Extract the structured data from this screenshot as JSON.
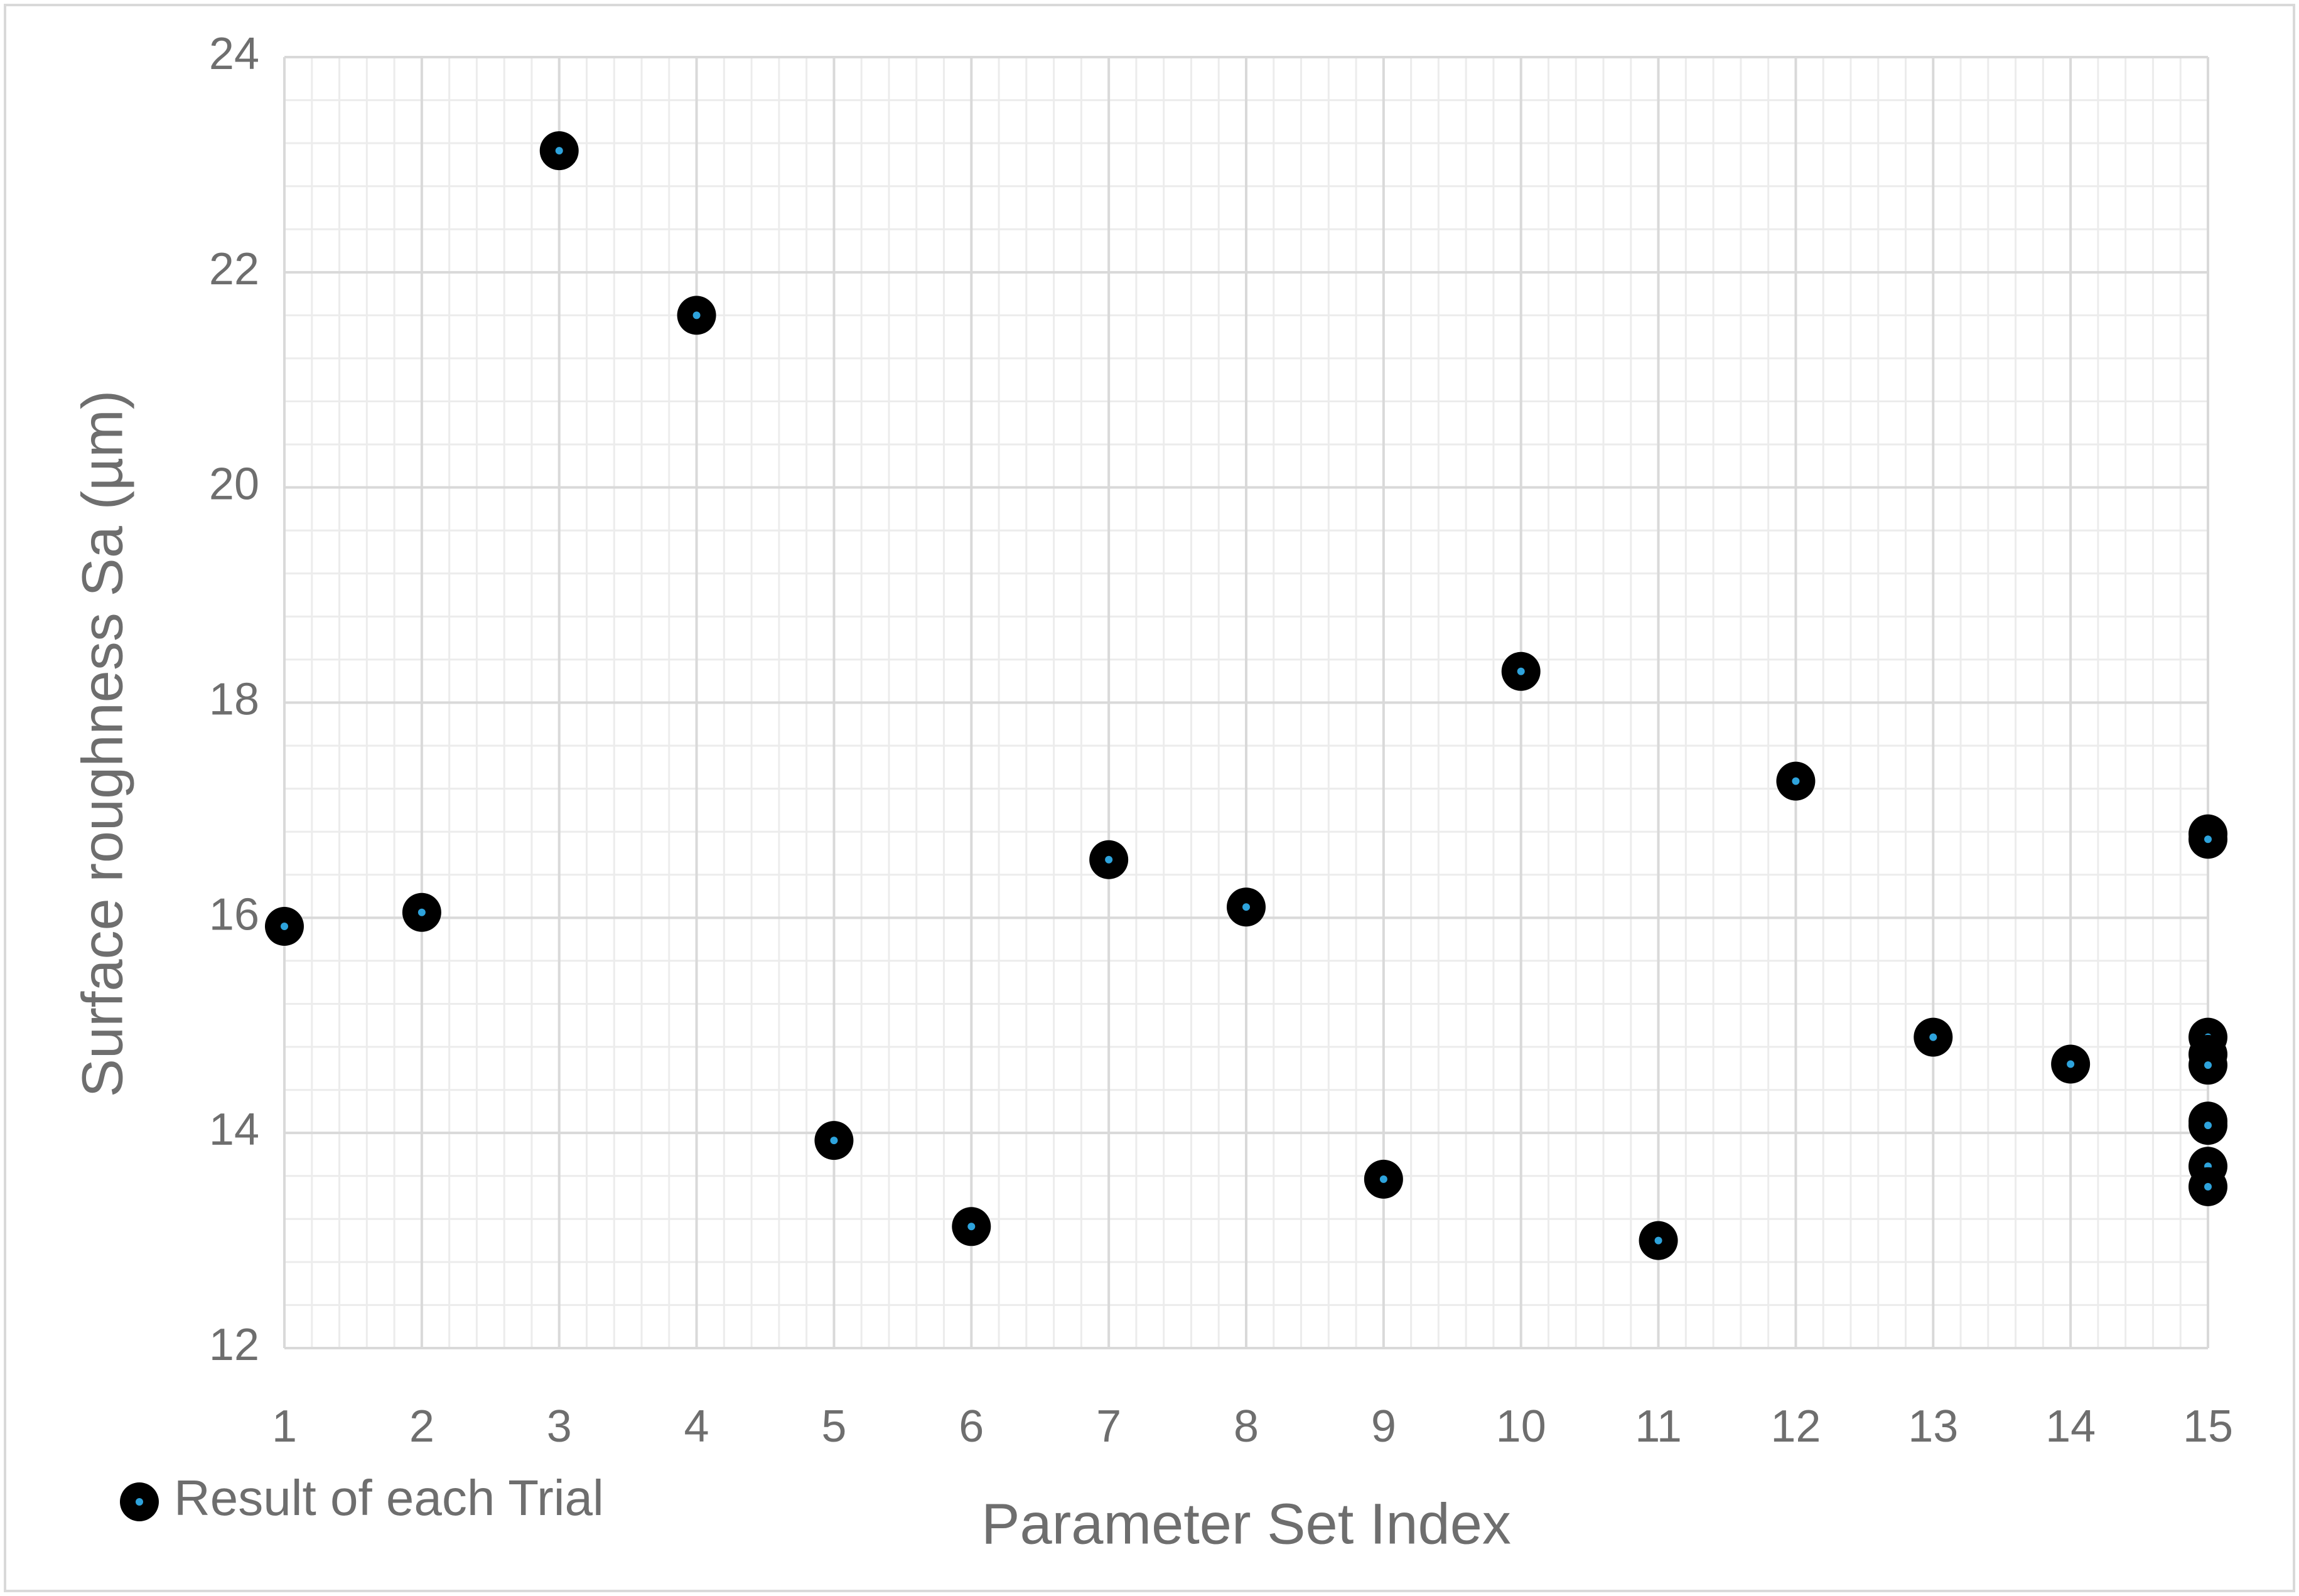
{
  "chart_data": {
    "type": "scatter",
    "x_label": "Parameter Set Index",
    "y_label": "Surface roughness Sa (µm)",
    "xlim": [
      1,
      15
    ],
    "ylim": [
      12,
      24
    ],
    "xticks": [
      1,
      2,
      3,
      4,
      5,
      6,
      7,
      8,
      9,
      10,
      11,
      12,
      13,
      14,
      15
    ],
    "yticks": [
      12,
      14,
      16,
      18,
      20,
      22,
      24
    ],
    "grid": true,
    "minor_grid": true,
    "legend": "bottom-left",
    "series": [
      {
        "name": "Result of each Trial",
        "color": "#000000",
        "dot_color": "#2ea3dc",
        "x": [
          1,
          2,
          3,
          4,
          5,
          6,
          7,
          8,
          9,
          10,
          11,
          12,
          13,
          14,
          15,
          15,
          15,
          15,
          15,
          15,
          15,
          15,
          15
        ],
        "values": [
          15.92,
          16.05,
          23.13,
          21.6,
          13.93,
          13.13,
          16.54,
          16.1,
          13.57,
          18.29,
          13.0,
          17.27,
          14.89,
          14.64,
          16.78,
          16.73,
          14.89,
          14.73,
          14.63,
          14.11,
          14.07,
          13.69,
          13.5
        ]
      }
    ]
  }
}
